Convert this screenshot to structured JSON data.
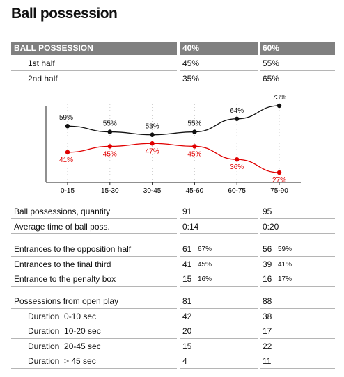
{
  "title": "Ball possession",
  "possession_table": {
    "header": [
      "BALL POSSESSION",
      "40%",
      "60%"
    ],
    "rows": [
      [
        "1st half",
        "45%",
        "55%"
      ],
      [
        "2nd half",
        "35%",
        "65%"
      ]
    ]
  },
  "chart_data": {
    "type": "line",
    "categories": [
      "0-15",
      "15-30",
      "30-45",
      "45-60",
      "60-75",
      "75-90"
    ],
    "series": [
      {
        "color": "#111111",
        "values": [
          59,
          55,
          53,
          55,
          64,
          73
        ],
        "value_labels": [
          "59%",
          "55%",
          "53%",
          "55%",
          "64%",
          "73%"
        ]
      },
      {
        "color": "#e00000",
        "values": [
          41,
          45,
          47,
          45,
          36,
          27
        ],
        "value_labels": [
          "41%",
          "45%",
          "47%",
          "45%",
          "36%",
          "27%"
        ]
      }
    ]
  },
  "stats": [
    [
      [
        "Ball possessions, quantity",
        "91",
        "95"
      ],
      [
        "Average time of ball poss.",
        "0:14",
        "0:20"
      ]
    ],
    [
      [
        "Entrances to the opposition half",
        "61",
        "67%",
        "56",
        "59%"
      ],
      [
        "Entrances to the final third",
        "41",
        "45%",
        "39",
        "41%"
      ],
      [
        "Entrance to the penalty box",
        "15",
        "16%",
        "16",
        "17%"
      ]
    ],
    [
      [
        "Possessions from open play",
        "81",
        "88"
      ],
      [
        "Duration  0-10 sec",
        "42",
        "38"
      ],
      [
        "Duration  10-20 sec",
        "20",
        "17"
      ],
      [
        "Duration  20-45 sec",
        "15",
        "22"
      ],
      [
        "Duration  > 45 sec",
        "4",
        "11"
      ]
    ]
  ]
}
